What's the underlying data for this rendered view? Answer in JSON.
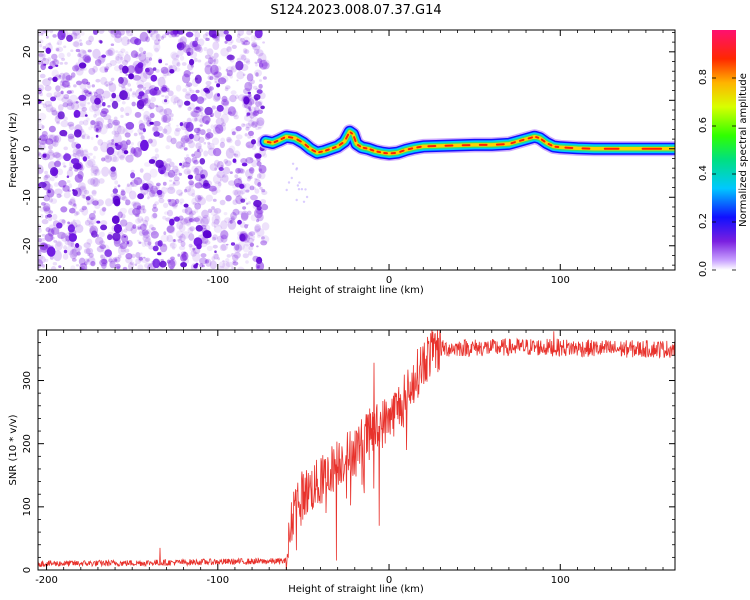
{
  "title": "S124.2023.008.07.37.G14",
  "chart_data": [
    {
      "id": "spectrogram",
      "type": "heatmap",
      "xlabel": "Height of straight line (km)",
      "ylabel": "Frequency (Hz)",
      "xlim": [
        -205,
        167
      ],
      "ylim": [
        -25,
        24.5
      ],
      "x_ticks": [
        -200,
        -100,
        0,
        100
      ],
      "y_ticks": [
        -20,
        -10,
        0,
        10,
        20
      ],
      "noise_region_x": [
        -205,
        -72
      ],
      "signal_onset_x": -72,
      "ridge": {
        "x": [
          -72,
          -68,
          -64,
          -60,
          -55,
          -50,
          -46,
          -42,
          -38,
          -34,
          -30,
          -26,
          -23,
          -21,
          -19,
          -16,
          -12,
          -8,
          -4,
          0,
          5,
          10,
          15,
          20,
          30,
          40,
          50,
          60,
          70,
          75,
          80,
          85,
          88,
          92,
          96,
          100,
          110,
          120,
          140,
          167
        ],
        "frequency": [
          1.5,
          1.2,
          1.8,
          2.5,
          2.2,
          1.2,
          0.0,
          -0.8,
          -0.5,
          0.0,
          0.5,
          1.5,
          3.5,
          3.0,
          1.0,
          0.3,
          0.0,
          -0.5,
          -0.8,
          -1.0,
          -0.8,
          -0.2,
          0.2,
          0.5,
          0.6,
          0.7,
          0.8,
          0.8,
          1.0,
          1.5,
          2.0,
          2.5,
          2.2,
          1.2,
          0.5,
          0.3,
          0.1,
          0.0,
          0.0,
          0.0
        ]
      },
      "colorbar": {
        "label": "Normalized spectral amplitude",
        "ticks": [
          "0.0",
          "0.2",
          "0.4",
          "0.6",
          "0.8"
        ],
        "tick_values": [
          0.0,
          0.2,
          0.4,
          0.6,
          0.8
        ],
        "range": [
          0.0,
          1.0
        ]
      }
    },
    {
      "id": "snr",
      "type": "line",
      "xlabel": "Height of straight line (km)",
      "ylabel": "SNR (10 * v/v)",
      "xlim": [
        -205,
        167
      ],
      "ylim": [
        0,
        380
      ],
      "x_ticks": [
        -200,
        -100,
        0,
        100
      ],
      "y_ticks": [
        0,
        100,
        200,
        300
      ],
      "color": "#e8322c",
      "series": [
        {
          "name": "SNR",
          "x": [
            -205,
            -150,
            -100,
            -60,
            -55,
            -50,
            -40,
            -30,
            -20,
            -10,
            0,
            10,
            20,
            25,
            30,
            40,
            60,
            80,
            100,
            130,
            167
          ],
          "values": [
            10,
            11,
            13,
            14,
            110,
            120,
            140,
            170,
            190,
            220,
            240,
            275,
            330,
            345,
            350,
            352,
            352,
            353,
            352,
            350,
            350
          ]
        }
      ],
      "annotations": [
        {
          "x": -134,
          "y": 35
        },
        {
          "x": -31,
          "y": 15
        },
        {
          "x": -9,
          "y": 328
        },
        {
          "x": -6,
          "y": 70
        },
        {
          "x": 96,
          "y": 378
        }
      ]
    }
  ],
  "colors": {
    "noise_purple": "#7a1fe0",
    "snr_line": "#e8322c"
  }
}
